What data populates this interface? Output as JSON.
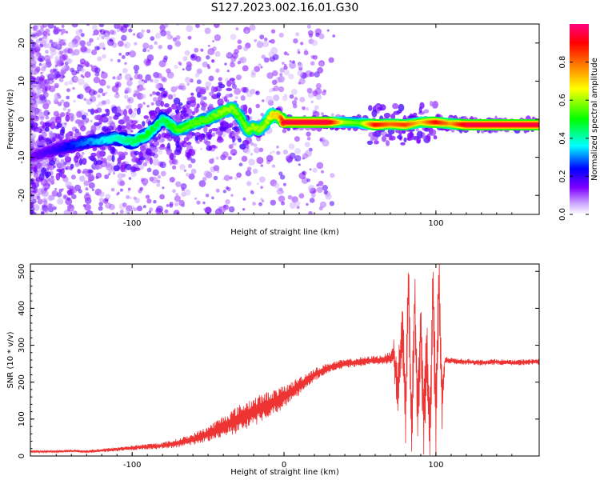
{
  "title": "S127.2023.002.16.01.G30",
  "chart_data": [
    {
      "type": "heatmap",
      "xlabel": "Height of straight line (km)",
      "ylabel": "Frequency (Hz)",
      "xlim": [
        -167,
        168
      ],
      "ylim": [
        -25,
        25
      ],
      "xticks": [
        -100,
        0,
        100
      ],
      "xtick_labels": [
        "-100",
        "",
        "100"
      ],
      "yticks": [
        20,
        10,
        0,
        -10,
        -20
      ],
      "yticks_rotated": true,
      "colorbar": {
        "label": "Normalized spectral amplitude",
        "range": [
          0.0,
          1.0
        ],
        "ticks": [
          "0.0",
          "0.2",
          "0.4",
          "0.6",
          "0.8"
        ],
        "colors": [
          "#ffffff",
          "#c8a2ff",
          "#8000ff",
          "#0000ff",
          "#00ffff",
          "#00ff00",
          "#ffff00",
          "#ff8000",
          "#ff0000",
          "#ff0080"
        ]
      },
      "ridge": {
        "x": [
          -167,
          -150,
          -130,
          -110,
          -100,
          -90,
          -80,
          -70,
          -60,
          -50,
          -40,
          -34,
          -28,
          -24,
          -20,
          -16,
          -12,
          -8,
          -4,
          0,
          10,
          20,
          30,
          40,
          50,
          60,
          70,
          80,
          90,
          100,
          110,
          120,
          130,
          140,
          150,
          160,
          168
        ],
        "freq": [
          -10,
          -8,
          -6,
          -5,
          -6,
          -4,
          0,
          -3,
          -1,
          0,
          2,
          3,
          0,
          -3,
          -2,
          -3,
          -1,
          1,
          1,
          -0.8,
          -0.8,
          -0.8,
          -0.8,
          -0.8,
          -1,
          -1.5,
          -1.3,
          -1.5,
          -0.8,
          -0.8,
          -1.2,
          -1.5,
          -1.5,
          -1.5,
          -1.5,
          -1.5,
          -1.5
        ],
        "amplitude": [
          0.15,
          0.2,
          0.3,
          0.4,
          0.45,
          0.5,
          0.45,
          0.55,
          0.55,
          0.55,
          0.6,
          0.6,
          0.55,
          0.6,
          0.6,
          0.6,
          0.6,
          0.7,
          0.7,
          0.95,
          0.95,
          0.95,
          0.95,
          0.6,
          0.55,
          0.9,
          0.8,
          0.85,
          0.7,
          0.9,
          0.75,
          0.95,
          0.95,
          0.95,
          0.95,
          0.95,
          0.95
        ]
      }
    },
    {
      "type": "line",
      "xlabel": "Height of straight line (km)",
      "ylabel": "SNR (10 * v/v)",
      "xlim": [
        -167,
        168
      ],
      "ylim": [
        0,
        520
      ],
      "xticks": [
        -100,
        0,
        100
      ],
      "xtick_labels": [
        "-100",
        "0",
        "100"
      ],
      "yticks": [
        0,
        100,
        200,
        300,
        400,
        500
      ],
      "series": [
        {
          "color": "#ee3333",
          "x": [
            -167,
            -150,
            -140,
            -130,
            -120,
            -110,
            -100,
            -90,
            -80,
            -70,
            -60,
            -50,
            -40,
            -30,
            -20,
            -10,
            0,
            10,
            20,
            30,
            40,
            50,
            60,
            65,
            70,
            72,
            75,
            78,
            80,
            82,
            84,
            86,
            88,
            90,
            92,
            94,
            96,
            98,
            100,
            102,
            104,
            106,
            110,
            120,
            130,
            140,
            150,
            160,
            168
          ],
          "y": [
            12,
            12,
            14,
            12,
            15,
            18,
            22,
            25,
            28,
            35,
            45,
            60,
            80,
            100,
            120,
            140,
            160,
            190,
            220,
            240,
            250,
            255,
            260,
            260,
            265,
            280,
            180,
            350,
            120,
            460,
            60,
            420,
            100,
            380,
            80,
            300,
            40,
            450,
            100,
            480,
            150,
            260,
            258,
            255,
            253,
            255,
            252,
            255,
            255
          ],
          "noise": [
            3,
            3,
            4,
            4,
            5,
            6,
            7,
            8,
            9,
            12,
            16,
            22,
            30,
            38,
            40,
            36,
            30,
            25,
            18,
            14,
            12,
            12,
            12,
            14,
            18,
            40,
            80,
            90,
            100,
            110,
            110,
            110,
            110,
            110,
            110,
            110,
            110,
            110,
            110,
            110,
            80,
            10,
            8,
            8,
            8,
            8,
            8,
            8,
            8
          ]
        }
      ]
    }
  ]
}
